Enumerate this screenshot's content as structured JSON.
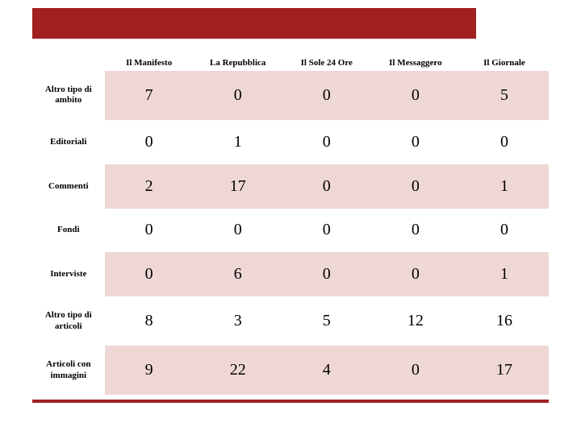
{
  "type": "table",
  "colors": {
    "accent": "#a22020",
    "shade": "#eed7d5",
    "background": "#ffffff",
    "text": "#000000"
  },
  "columns": [
    "Il Manifesto",
    "La Repubblica",
    "Il Sole 24 Ore",
    "Il Messaggero",
    "Il Giornale"
  ],
  "row_labels": [
    "Altro tipo di ambito",
    "Editoriali",
    "Commenti",
    "Fondi",
    "Interviste",
    "Altro tipo di articoli",
    "Articoli con immagini"
  ],
  "rows": [
    [
      7,
      0,
      0,
      0,
      5
    ],
    [
      0,
      1,
      0,
      0,
      0
    ],
    [
      2,
      17,
      0,
      0,
      1
    ],
    [
      0,
      0,
      0,
      0,
      0
    ],
    [
      0,
      6,
      0,
      0,
      1
    ],
    [
      8,
      3,
      5,
      12,
      16
    ],
    [
      9,
      22,
      4,
      0,
      17
    ]
  ],
  "fonts": {
    "header_size": 11,
    "data_size": 20,
    "family": "Georgia"
  }
}
